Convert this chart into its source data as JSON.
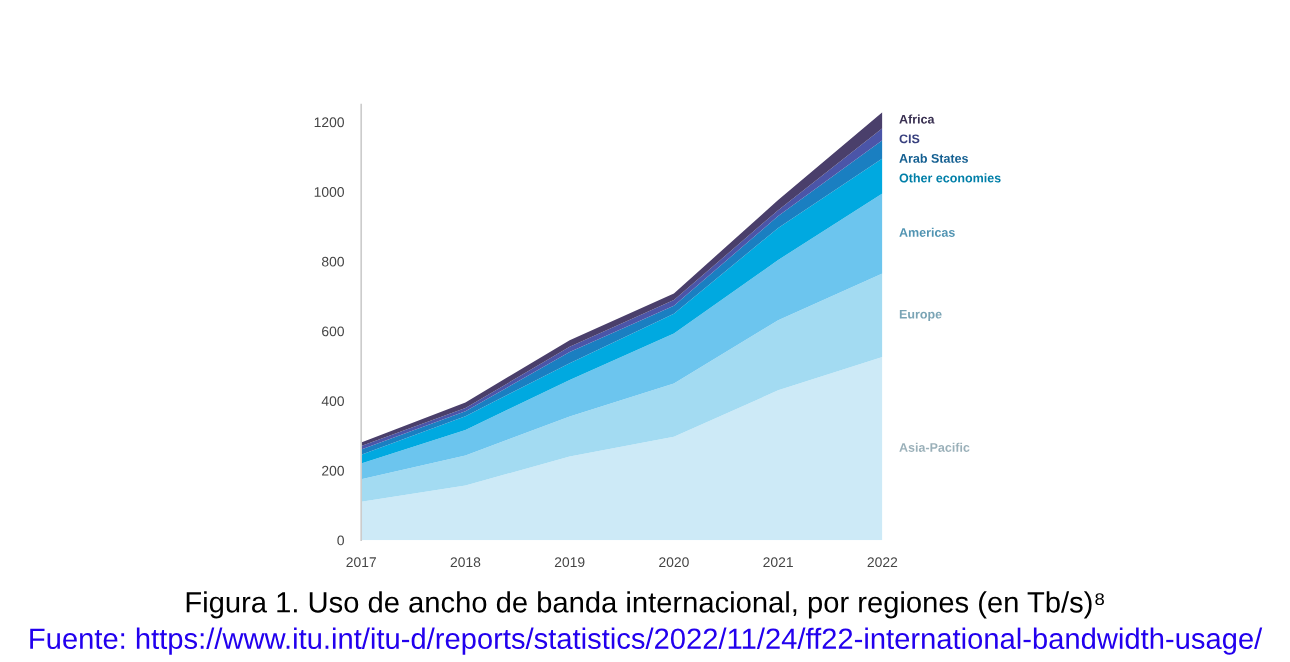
{
  "chart_data": {
    "type": "area",
    "stacked": true,
    "title": "Figura 1. Uso de ancho de banda internacional, por regiones (en Tb/s)⁸",
    "annotations": [
      "Fuente: https://www.itu.int/itu-d/reports/statistics/2022/11/24/ff22-international-bandwidth-usage/"
    ],
    "x": [
      2017,
      2018,
      2019,
      2020,
      2021,
      2022
    ],
    "series": [
      {
        "name": "Asia-Pacific",
        "color": "#cdeaf7",
        "values": [
          110,
          157,
          240,
          297,
          430,
          526
        ]
      },
      {
        "name": "Europe",
        "color": "#a3dbf2",
        "values": [
          65,
          86,
          115,
          153,
          201,
          239
        ]
      },
      {
        "name": "Americas",
        "color": "#6cc5ee",
        "values": [
          45,
          73,
          105,
          143,
          173,
          230
        ]
      },
      {
        "name": "Other economies",
        "color": "#00a9e0",
        "values": [
          25,
          40,
          48,
          57,
          92,
          100
        ]
      },
      {
        "name": "Arab States",
        "color": "#1a7fc1",
        "values": [
          15,
          14,
          32,
          23,
          34,
          53
        ]
      },
      {
        "name": "CIS",
        "color": "#4b55a8",
        "values": [
          10,
          9,
          15,
          16,
          17,
          34
        ]
      },
      {
        "name": "Africa",
        "color": "#4a3f6b",
        "values": [
          10,
          16,
          19,
          19,
          29,
          46
        ]
      }
    ],
    "xlim": [
      2017,
      2022
    ],
    "xticks": [
      2017,
      2018,
      2019,
      2020,
      2021,
      2022
    ],
    "ylim": [
      0,
      1250
    ],
    "yticks": [
      0,
      200,
      400,
      600,
      800,
      1000,
      1200
    ],
    "grid": false,
    "legend": false
  }
}
